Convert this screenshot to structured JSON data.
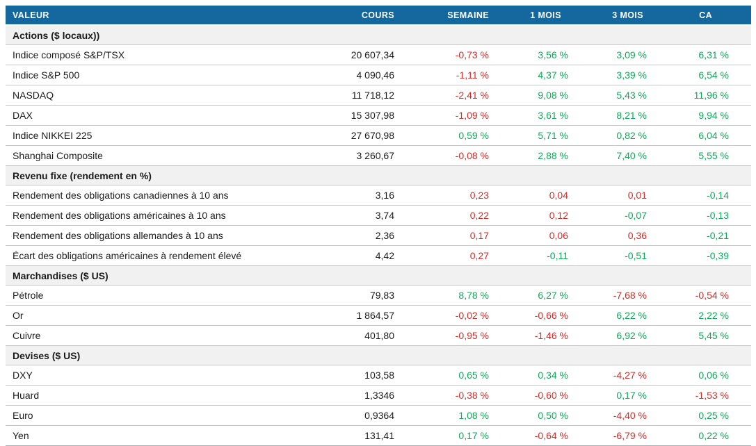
{
  "colors": {
    "header_bg": "#15689D",
    "header_text": "#FFFFFF",
    "positive": "#0DA958",
    "negative": "#D32B27",
    "section_bg": "#F1F1F1",
    "row_divider": "#C6C6C6"
  },
  "table": {
    "columns": [
      {
        "key": "valeur",
        "label": "VALEUR"
      },
      {
        "key": "cours",
        "label": "COURS"
      },
      {
        "key": "semaine",
        "label": "SEMAINE"
      },
      {
        "key": "mois1",
        "label": "1 MOIS"
      },
      {
        "key": "mois3",
        "label": "3 MOIS"
      },
      {
        "key": "ca",
        "label": "CA"
      }
    ],
    "sections": [
      {
        "title": "Actions ($ locaux))",
        "rows": [
          {
            "label": "Indice composé S&P/TSX",
            "cours": "20 607,34",
            "cells": [
              {
                "text": "-0,73 %",
                "tone": "negative"
              },
              {
                "text": "3,56 %",
                "tone": "positive"
              },
              {
                "text": "3,09 %",
                "tone": "positive"
              },
              {
                "text": "6,31 %",
                "tone": "positive"
              }
            ]
          },
          {
            "label": "Indice S&P 500",
            "cours": "4 090,46",
            "cells": [
              {
                "text": "-1,11 %",
                "tone": "negative"
              },
              {
                "text": "4,37 %",
                "tone": "positive"
              },
              {
                "text": "3,39 %",
                "tone": "positive"
              },
              {
                "text": "6,54 %",
                "tone": "positive"
              }
            ]
          },
          {
            "label": "NASDAQ",
            "cours": "11 718,12",
            "cells": [
              {
                "text": "-2,41 %",
                "tone": "negative"
              },
              {
                "text": "9,08 %",
                "tone": "positive"
              },
              {
                "text": "5,43 %",
                "tone": "positive"
              },
              {
                "text": "11,96 %",
                "tone": "positive"
              }
            ]
          },
          {
            "label": "DAX",
            "cours": "15 307,98",
            "cells": [
              {
                "text": "-1,09 %",
                "tone": "negative"
              },
              {
                "text": "3,61 %",
                "tone": "positive"
              },
              {
                "text": "8,21 %",
                "tone": "positive"
              },
              {
                "text": "9,94 %",
                "tone": "positive"
              }
            ]
          },
          {
            "label": "Indice NIKKEI 225",
            "cours": "27 670,98",
            "cells": [
              {
                "text": "0,59 %",
                "tone": "positive"
              },
              {
                "text": "5,71 %",
                "tone": "positive"
              },
              {
                "text": "0,82 %",
                "tone": "positive"
              },
              {
                "text": "6,04 %",
                "tone": "positive"
              }
            ]
          },
          {
            "label": "Shanghai Composite",
            "cours": "3 260,67",
            "cells": [
              {
                "text": "-0,08 %",
                "tone": "negative"
              },
              {
                "text": "2,88 %",
                "tone": "positive"
              },
              {
                "text": "7,40 %",
                "tone": "positive"
              },
              {
                "text": "5,55 %",
                "tone": "positive"
              }
            ]
          }
        ]
      },
      {
        "title": "Revenu fixe (rendement en %)",
        "rows": [
          {
            "label": "Rendement des obligations canadiennes à 10 ans",
            "cours": "3,16",
            "cells": [
              {
                "text": "0,23",
                "tone": "negative"
              },
              {
                "text": "0,04",
                "tone": "negative"
              },
              {
                "text": "0,01",
                "tone": "negative"
              },
              {
                "text": "-0,14",
                "tone": "positive"
              }
            ]
          },
          {
            "label": "Rendement des obligations américaines à 10 ans",
            "cours": "3,74",
            "cells": [
              {
                "text": "0,22",
                "tone": "negative"
              },
              {
                "text": "0,12",
                "tone": "negative"
              },
              {
                "text": "-0,07",
                "tone": "positive"
              },
              {
                "text": "-0,13",
                "tone": "positive"
              }
            ]
          },
          {
            "label": "Rendement des obligations allemandes à 10 ans",
            "cours": "2,36",
            "cells": [
              {
                "text": "0,17",
                "tone": "negative"
              },
              {
                "text": "0,06",
                "tone": "negative"
              },
              {
                "text": "0,36",
                "tone": "negative"
              },
              {
                "text": "-0,21",
                "tone": "positive"
              }
            ]
          },
          {
            "label": "Écart des obligations américaines à rendement élevé",
            "cours": "4,42",
            "cells": [
              {
                "text": "0,27",
                "tone": "negative"
              },
              {
                "text": "-0,11",
                "tone": "positive"
              },
              {
                "text": "-0,51",
                "tone": "positive"
              },
              {
                "text": "-0,39",
                "tone": "positive"
              }
            ]
          }
        ]
      },
      {
        "title": "Marchandises ($ US)",
        "rows": [
          {
            "label": "Pétrole",
            "cours": "79,83",
            "cells": [
              {
                "text": "8,78 %",
                "tone": "positive"
              },
              {
                "text": "6,27 %",
                "tone": "positive"
              },
              {
                "text": "-7,68 %",
                "tone": "negative"
              },
              {
                "text": "-0,54 %",
                "tone": "negative"
              }
            ]
          },
          {
            "label": "Or",
            "cours": "1 864,57",
            "cells": [
              {
                "text": "-0,02 %",
                "tone": "negative"
              },
              {
                "text": "-0,66 %",
                "tone": "negative"
              },
              {
                "text": "6,22 %",
                "tone": "positive"
              },
              {
                "text": "2,22 %",
                "tone": "positive"
              }
            ]
          },
          {
            "label": "Cuivre",
            "cours": "401,80",
            "cells": [
              {
                "text": "-0,95 %",
                "tone": "negative"
              },
              {
                "text": "-1,46 %",
                "tone": "negative"
              },
              {
                "text": "6,92 %",
                "tone": "positive"
              },
              {
                "text": "5,45 %",
                "tone": "positive"
              }
            ]
          }
        ]
      },
      {
        "title": "Devises ($ US)",
        "rows": [
          {
            "label": "DXY",
            "cours": "103,58",
            "cells": [
              {
                "text": "0,65 %",
                "tone": "positive"
              },
              {
                "text": "0,34 %",
                "tone": "positive"
              },
              {
                "text": "-4,27 %",
                "tone": "negative"
              },
              {
                "text": "0,06 %",
                "tone": "positive"
              }
            ]
          },
          {
            "label": "Huard",
            "cours": "1,3346",
            "cells": [
              {
                "text": "-0,38 %",
                "tone": "negative"
              },
              {
                "text": "-0,60 %",
                "tone": "negative"
              },
              {
                "text": "0,17 %",
                "tone": "positive"
              },
              {
                "text": "-1,53 %",
                "tone": "negative"
              }
            ]
          },
          {
            "label": "Euro",
            "cours": "0,9364",
            "cells": [
              {
                "text": "1,08 %",
                "tone": "positive"
              },
              {
                "text": "0,50 %",
                "tone": "positive"
              },
              {
                "text": "-4,40 %",
                "tone": "negative"
              },
              {
                "text": "0,25 %",
                "tone": "positive"
              }
            ]
          },
          {
            "label": "Yen",
            "cours": "131,41",
            "cells": [
              {
                "text": "0,17 %",
                "tone": "positive"
              },
              {
                "text": "-0,64 %",
                "tone": "negative"
              },
              {
                "text": "-6,79 %",
                "tone": "negative"
              },
              {
                "text": "0,22 %",
                "tone": "positive"
              }
            ]
          }
        ]
      }
    ]
  }
}
